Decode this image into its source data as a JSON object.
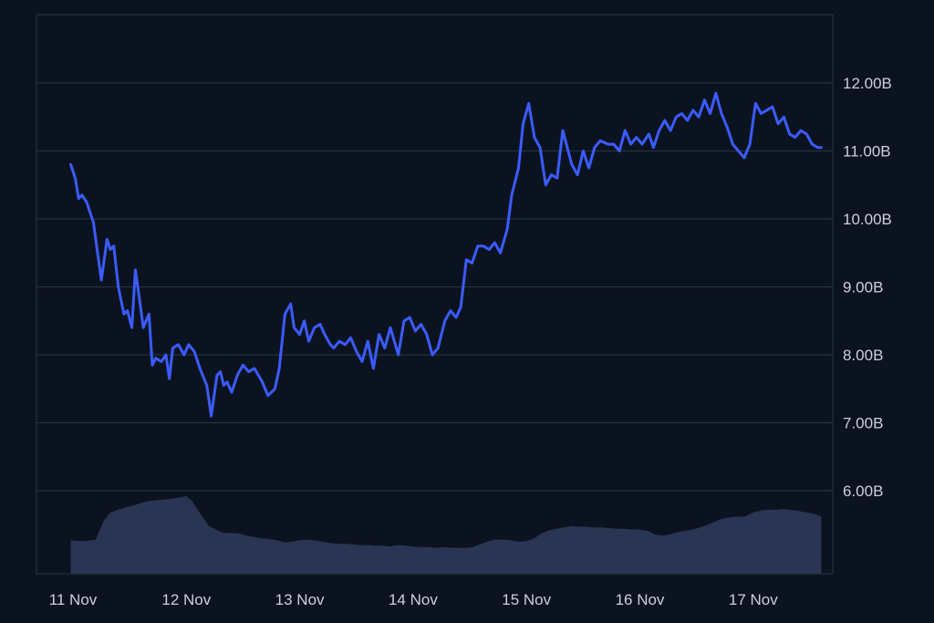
{
  "chart_data": {
    "type": "line",
    "colors": {
      "background": "#0c1320",
      "grid": "#2a3446",
      "line": "#3b5bfd",
      "volume_fill": "#2a3553",
      "text": "#c9d1dc"
    },
    "grid": true,
    "y_axis_position": "right",
    "ylim": [
      5.0,
      13.0
    ],
    "y_ticks": [
      6,
      7,
      8,
      9,
      10,
      11,
      12
    ],
    "y_tick_labels": [
      "6.00B",
      "7.00B",
      "8.00B",
      "9.00B",
      "10.00B",
      "11.00B",
      "12.00B"
    ],
    "xlim": [
      -0.02,
      6.62
    ],
    "x_ticks": [
      0,
      1,
      2,
      3,
      4,
      5,
      6
    ],
    "x_tick_labels": [
      "11 Nov",
      "12 Nov",
      "13 Nov",
      "14 Nov",
      "15 Nov",
      "16 Nov",
      "17 Nov"
    ],
    "series": [
      {
        "values_unit": "B",
        "x": [
          -0.02,
          0.02,
          0.05,
          0.08,
          0.12,
          0.18,
          0.25,
          0.3,
          0.33,
          0.36,
          0.4,
          0.45,
          0.48,
          0.52,
          0.55,
          0.58,
          0.62,
          0.67,
          0.7,
          0.73,
          0.78,
          0.82,
          0.85,
          0.88,
          0.93,
          0.98,
          1.02,
          1.07,
          1.12,
          1.18,
          1.22,
          1.27,
          1.3,
          1.33,
          1.36,
          1.4,
          1.45,
          1.5,
          1.55,
          1.6,
          1.67,
          1.72,
          1.78,
          1.82,
          1.87,
          1.92,
          1.95,
          2.0,
          2.04,
          2.08,
          2.13,
          2.18,
          2.22,
          2.27,
          2.3,
          2.35,
          2.4,
          2.45,
          2.5,
          2.55,
          2.6,
          2.65,
          2.7,
          2.75,
          2.8,
          2.87,
          2.92,
          2.97,
          3.02,
          3.07,
          3.12,
          3.17,
          3.22,
          3.28,
          3.33,
          3.38,
          3.42,
          3.47,
          3.52,
          3.57,
          3.62,
          3.67,
          3.72,
          3.77,
          3.83,
          3.87,
          3.93,
          3.97,
          4.02,
          4.07,
          4.12,
          4.17,
          4.22,
          4.27,
          4.32,
          4.36,
          4.4,
          4.45,
          4.5,
          4.55,
          4.6,
          4.65,
          4.72,
          4.77,
          4.82,
          4.87,
          4.92,
          4.97,
          5.02,
          5.08,
          5.12,
          5.17,
          5.22,
          5.27,
          5.32,
          5.37,
          5.42,
          5.47,
          5.52,
          5.57,
          5.62,
          5.67,
          5.72,
          5.77,
          5.82,
          5.87,
          5.92,
          5.97,
          6.02,
          6.07,
          6.12,
          6.17,
          6.22,
          6.27,
          6.32,
          6.37,
          6.42,
          6.47,
          6.52,
          6.57,
          6.6
        ],
        "values": [
          10.8,
          10.6,
          10.3,
          10.35,
          10.25,
          9.95,
          9.1,
          9.7,
          9.55,
          9.6,
          9.0,
          8.6,
          8.65,
          8.4,
          9.25,
          8.9,
          8.4,
          8.6,
          7.85,
          7.95,
          7.9,
          8.0,
          7.65,
          8.1,
          8.15,
          8.0,
          8.15,
          8.05,
          7.8,
          7.55,
          7.1,
          7.7,
          7.75,
          7.55,
          7.6,
          7.45,
          7.7,
          7.85,
          7.75,
          7.8,
          7.6,
          7.4,
          7.5,
          7.8,
          8.6,
          8.75,
          8.4,
          8.3,
          8.5,
          8.2,
          8.4,
          8.45,
          8.3,
          8.15,
          8.1,
          8.2,
          8.15,
          8.25,
          8.05,
          7.9,
          8.2,
          7.8,
          8.3,
          8.1,
          8.4,
          8.0,
          8.5,
          8.55,
          8.35,
          8.45,
          8.3,
          8.0,
          8.1,
          8.5,
          8.65,
          8.55,
          8.7,
          9.4,
          9.35,
          9.6,
          9.6,
          9.55,
          9.65,
          9.5,
          9.85,
          10.35,
          10.75,
          11.4,
          11.7,
          11.2,
          11.05,
          10.5,
          10.65,
          10.6,
          11.3,
          11.05,
          10.8,
          10.65,
          11.0,
          10.75,
          11.05,
          11.15,
          11.1,
          11.1,
          11.0,
          11.3,
          11.1,
          11.2,
          11.1,
          11.25,
          11.05,
          11.3,
          11.45,
          11.3,
          11.5,
          11.55,
          11.45,
          11.6,
          11.5,
          11.75,
          11.55,
          11.85,
          11.55,
          11.35,
          11.1,
          11.0,
          10.9,
          11.1,
          11.7,
          11.55,
          11.6,
          11.65,
          11.4,
          11.5,
          11.25,
          11.2,
          11.3,
          11.25,
          11.1,
          11.05,
          11.05
        ]
      }
    ],
    "volume": {
      "values_unit": "B",
      "x": [
        -0.02,
        0.05,
        0.12,
        0.2,
        0.27,
        0.33,
        0.4,
        0.47,
        0.53,
        0.6,
        0.67,
        0.73,
        0.8,
        0.87,
        0.93,
        1.0,
        1.05,
        1.1,
        1.15,
        1.2,
        1.27,
        1.33,
        1.4,
        1.47,
        1.53,
        1.6,
        1.67,
        1.73,
        1.8,
        1.87,
        1.93,
        2.0,
        2.07,
        2.13,
        2.2,
        2.27,
        2.33,
        2.4,
        2.47,
        2.53,
        2.6,
        2.67,
        2.73,
        2.8,
        2.87,
        2.93,
        3.0,
        3.07,
        3.13,
        3.2,
        3.27,
        3.33,
        3.4,
        3.47,
        3.53,
        3.6,
        3.67,
        3.73,
        3.8,
        3.87,
        3.93,
        4.0,
        4.07,
        4.13,
        4.2,
        4.27,
        4.33,
        4.4,
        4.47,
        4.53,
        4.6,
        4.67,
        4.73,
        4.8,
        4.87,
        4.93,
        5.0,
        5.07,
        5.13,
        5.2,
        5.27,
        5.33,
        5.4,
        5.47,
        5.53,
        5.6,
        5.67,
        5.73,
        5.8,
        5.87,
        5.93,
        6.0,
        6.07,
        6.13,
        6.2,
        6.27,
        6.33,
        6.4,
        6.47,
        6.53,
        6.6
      ],
      "values": [
        5.27,
        5.26,
        5.26,
        5.28,
        5.55,
        5.68,
        5.72,
        5.76,
        5.78,
        5.82,
        5.85,
        5.86,
        5.87,
        5.88,
        5.9,
        5.92,
        5.85,
        5.72,
        5.6,
        5.48,
        5.42,
        5.38,
        5.38,
        5.37,
        5.34,
        5.32,
        5.3,
        5.29,
        5.27,
        5.24,
        5.25,
        5.27,
        5.28,
        5.27,
        5.25,
        5.23,
        5.22,
        5.22,
        5.21,
        5.2,
        5.2,
        5.19,
        5.19,
        5.18,
        5.2,
        5.19,
        5.18,
        5.17,
        5.17,
        5.16,
        5.17,
        5.16,
        5.16,
        5.16,
        5.17,
        5.22,
        5.26,
        5.28,
        5.28,
        5.27,
        5.25,
        5.26,
        5.3,
        5.37,
        5.42,
        5.44,
        5.46,
        5.48,
        5.47,
        5.47,
        5.46,
        5.46,
        5.45,
        5.44,
        5.44,
        5.43,
        5.43,
        5.41,
        5.36,
        5.34,
        5.36,
        5.39,
        5.41,
        5.43,
        5.46,
        5.5,
        5.55,
        5.59,
        5.61,
        5.62,
        5.62,
        5.68,
        5.71,
        5.72,
        5.72,
        5.73,
        5.72,
        5.7,
        5.68,
        5.66,
        5.62
      ]
    }
  }
}
